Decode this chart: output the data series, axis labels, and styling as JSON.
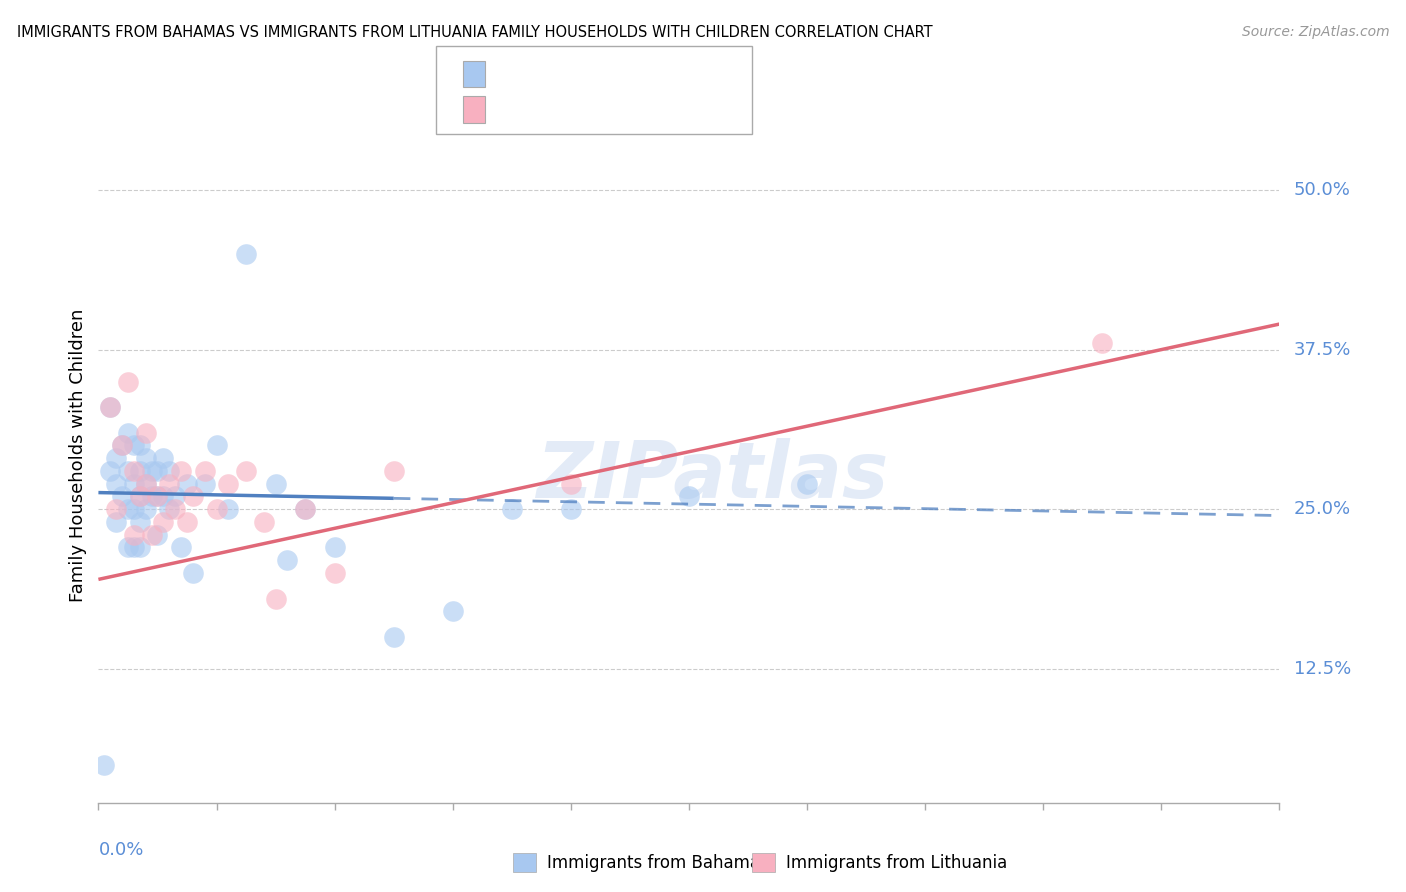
{
  "title": "IMMIGRANTS FROM BAHAMAS VS IMMIGRANTS FROM LITHUANIA FAMILY HOUSEHOLDS WITH CHILDREN CORRELATION CHART",
  "source": "Source: ZipAtlas.com",
  "ylabel": "Family Households with Children",
  "ytick_labels": [
    "12.5%",
    "25.0%",
    "37.5%",
    "50.0%"
  ],
  "ytick_values": [
    0.125,
    0.25,
    0.375,
    0.5
  ],
  "xlim": [
    0.0,
    0.2
  ],
  "ylim": [
    0.02,
    0.565
  ],
  "color_blue": "#a8c8f0",
  "color_blue_line": "#5080c0",
  "color_pink": "#f8b0c0",
  "color_pink_line": "#e06878",
  "watermark": "ZIPatlas",
  "bahamas_x": [
    0.001,
    0.002,
    0.002,
    0.003,
    0.003,
    0.003,
    0.004,
    0.004,
    0.005,
    0.005,
    0.005,
    0.005,
    0.006,
    0.006,
    0.006,
    0.006,
    0.007,
    0.007,
    0.007,
    0.007,
    0.007,
    0.008,
    0.008,
    0.008,
    0.009,
    0.009,
    0.01,
    0.01,
    0.01,
    0.011,
    0.011,
    0.012,
    0.012,
    0.013,
    0.014,
    0.015,
    0.016,
    0.018,
    0.02,
    0.022,
    0.025,
    0.03,
    0.032,
    0.035,
    0.04,
    0.05,
    0.06,
    0.07,
    0.08,
    0.1,
    0.12
  ],
  "bahamas_y": [
    0.05,
    0.28,
    0.33,
    0.29,
    0.27,
    0.24,
    0.3,
    0.26,
    0.31,
    0.28,
    0.25,
    0.22,
    0.3,
    0.27,
    0.25,
    0.22,
    0.3,
    0.28,
    0.26,
    0.24,
    0.22,
    0.29,
    0.27,
    0.25,
    0.28,
    0.26,
    0.28,
    0.26,
    0.23,
    0.29,
    0.26,
    0.28,
    0.25,
    0.26,
    0.22,
    0.27,
    0.2,
    0.27,
    0.3,
    0.25,
    0.45,
    0.27,
    0.21,
    0.25,
    0.22,
    0.15,
    0.17,
    0.25,
    0.25,
    0.26,
    0.27
  ],
  "lithuania_x": [
    0.002,
    0.003,
    0.004,
    0.005,
    0.006,
    0.006,
    0.007,
    0.008,
    0.008,
    0.009,
    0.01,
    0.011,
    0.012,
    0.013,
    0.014,
    0.015,
    0.016,
    0.018,
    0.02,
    0.022,
    0.025,
    0.028,
    0.03,
    0.035,
    0.04,
    0.05,
    0.08,
    0.17
  ],
  "lithuania_y": [
    0.33,
    0.25,
    0.3,
    0.35,
    0.28,
    0.23,
    0.26,
    0.31,
    0.27,
    0.23,
    0.26,
    0.24,
    0.27,
    0.25,
    0.28,
    0.24,
    0.26,
    0.28,
    0.25,
    0.27,
    0.28,
    0.24,
    0.18,
    0.25,
    0.2,
    0.28,
    0.27,
    0.38
  ],
  "blue_line_solid_end": 0.05,
  "blue_line_x0": 0.0,
  "blue_line_x1": 0.2,
  "blue_line_y0": 0.263,
  "blue_line_y1": 0.245,
  "pink_line_x0": 0.0,
  "pink_line_x1": 0.2,
  "pink_line_y0": 0.195,
  "pink_line_y1": 0.395
}
